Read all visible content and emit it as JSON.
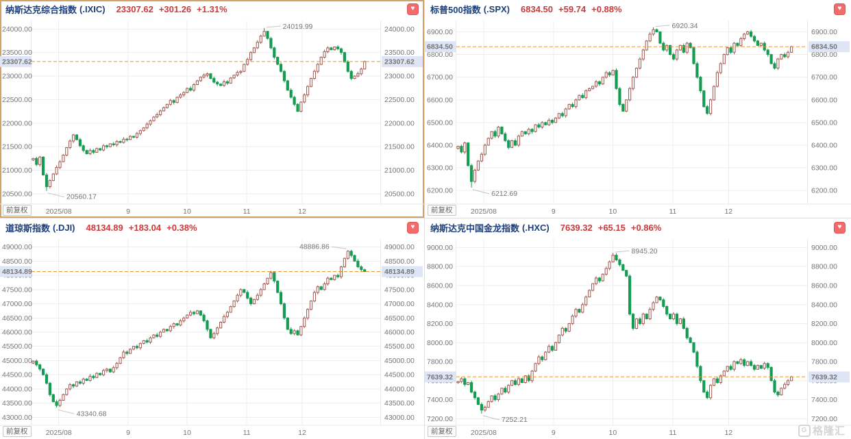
{
  "axis": {
    "adjust_label": "前复权",
    "x_labels": [
      "2025/08",
      "9",
      "10",
      "11",
      "12"
    ],
    "x_positions": [
      0.078,
      0.277,
      0.446,
      0.617,
      0.776
    ]
  },
  "watermark": {
    "text": "格隆汇",
    "icon": "gelonghui-logo"
  },
  "colors": {
    "up": "#a3574e",
    "down": "#169c52",
    "last_price_line": "#e2953d",
    "tag_bg": "#dde5f6",
    "tag_text": "#cb2a33",
    "title_blue": "#1c3f7c",
    "value_red": "#cc3a3a",
    "grid": "#ededed",
    "axis_text": "#757575",
    "annotation_text": "#9a9a9a",
    "active_border": "#d2a268",
    "heart_bg": "#f36b6b"
  },
  "chart_data": [
    {
      "type": "candlestick",
      "name": "纳斯达克综合指数",
      "code": "(.IXIC)",
      "price": "23307.62",
      "change": "+301.26",
      "change_pct": "+1.31%",
      "high_label": "24019.99",
      "low_label": "20560.17",
      "ticks": [
        24000,
        23500,
        23000,
        22500,
        22000,
        21500,
        21000,
        20500
      ],
      "ymin": 20280,
      "ymax": 24180,
      "closes": [
        21250,
        21120,
        21280,
        20900,
        20650,
        20780,
        20920,
        21060,
        21180,
        21320,
        21480,
        21620,
        21750,
        21650,
        21520,
        21420,
        21350,
        21420,
        21380,
        21460,
        21430,
        21520,
        21500,
        21560,
        21540,
        21610,
        21590,
        21660,
        21650,
        21720,
        21700,
        21780,
        21840,
        21900,
        21980,
        22050,
        22130,
        22180,
        22260,
        22330,
        22400,
        22480,
        22440,
        22550,
        22600,
        22650,
        22740,
        22700,
        22820,
        22900,
        22980,
        23020,
        23050,
        22950,
        22870,
        22830,
        22800,
        22880,
        22850,
        22960,
        23020,
        23080,
        23100,
        23250,
        23350,
        23500,
        23600,
        23720,
        23850,
        23950,
        23800,
        23600,
        23400,
        23250,
        23100,
        22900,
        22700,
        22550,
        22400,
        22250,
        22450,
        22600,
        22780,
        22950,
        23100,
        23250,
        23400,
        23520,
        23600,
        23560,
        23620,
        23580,
        23500,
        23300,
        23100,
        22950,
        23000,
        23050,
        23150,
        23307.62
      ]
    },
    {
      "type": "candlestick",
      "name": "标普500指数",
      "code": "(.SPX)",
      "price": "6834.50",
      "change": "+59.74",
      "change_pct": "+0.88%",
      "high_label": "6920.34",
      "low_label": "6212.69",
      "ticks": [
        6900,
        6800,
        6700,
        6600,
        6500,
        6400,
        6300,
        6200
      ],
      "ymin": 6140,
      "ymax": 6950,
      "closes": [
        6395,
        6370,
        6410,
        6310,
        6240,
        6290,
        6330,
        6360,
        6400,
        6430,
        6460,
        6440,
        6480,
        6450,
        6420,
        6390,
        6420,
        6400,
        6440,
        6460,
        6450,
        6470,
        6460,
        6490,
        6480,
        6500,
        6490,
        6510,
        6500,
        6520,
        6540,
        6530,
        6560,
        6580,
        6570,
        6600,
        6620,
        6610,
        6640,
        6650,
        6660,
        6680,
        6670,
        6700,
        6720,
        6710,
        6730,
        6650,
        6580,
        6550,
        6600,
        6650,
        6700,
        6740,
        6780,
        6820,
        6860,
        6890,
        6910,
        6900,
        6850,
        6820,
        6840,
        6800,
        6780,
        6820,
        6840,
        6810,
        6850,
        6830,
        6760,
        6700,
        6640,
        6570,
        6540,
        6600,
        6660,
        6720,
        6760,
        6800,
        6830,
        6810,
        6850,
        6840,
        6870,
        6890,
        6900,
        6880,
        6860,
        6840,
        6850,
        6820,
        6800,
        6760,
        6740,
        6780,
        6800,
        6790,
        6810,
        6834.5
      ]
    },
    {
      "type": "candlestick",
      "name": "道琼斯指数",
      "code": "(.DJI)",
      "price": "48134.89",
      "change": "+183.04",
      "change_pct": "+0.38%",
      "high_label": "48886.86",
      "low_label": "43340.68",
      "ticks": [
        49000,
        48500,
        48000,
        47500,
        47000,
        46500,
        46000,
        45500,
        45000,
        44500,
        44000,
        43500,
        43000
      ],
      "ymin": 42720,
      "ymax": 49280,
      "closes": [
        44980,
        44850,
        44700,
        44500,
        44200,
        43800,
        43550,
        43420,
        43600,
        43800,
        44000,
        44150,
        44100,
        44250,
        44200,
        44350,
        44300,
        44450,
        44400,
        44550,
        44500,
        44650,
        44700,
        44600,
        44750,
        44900,
        45100,
        45300,
        45250,
        45400,
        45500,
        45450,
        45600,
        45700,
        45650,
        45800,
        45900,
        45850,
        46000,
        46100,
        46050,
        46200,
        46300,
        46250,
        46400,
        46500,
        46600,
        46700,
        46650,
        46750,
        46600,
        46400,
        46100,
        45800,
        45950,
        46150,
        46350,
        46550,
        46700,
        46900,
        47100,
        47300,
        47500,
        47400,
        47200,
        47000,
        47150,
        47300,
        47500,
        47700,
        47900,
        48100,
        47800,
        47400,
        47000,
        46500,
        46100,
        45950,
        46050,
        45900,
        46200,
        46500,
        46800,
        47100,
        47400,
        47600,
        47500,
        47700,
        47900,
        47850,
        48000,
        47950,
        48300,
        48600,
        48850,
        48700,
        48500,
        48300,
        48200,
        48134.89
      ]
    },
    {
      "type": "candlestick",
      "name": "纳斯达克中国金龙指数",
      "code": "(.HXC)",
      "price": "7639.32",
      "change": "+65.15",
      "change_pct": "+0.86%",
      "high_label": "8945.20",
      "low_label": "7252.21",
      "ticks": [
        9000,
        8800,
        8600,
        8400,
        8200,
        8000,
        7800,
        7600,
        7400,
        7200
      ],
      "ymin": 7130,
      "ymax": 9090,
      "closes": [
        7590,
        7620,
        7560,
        7580,
        7480,
        7420,
        7350,
        7290,
        7320,
        7380,
        7440,
        7400,
        7460,
        7520,
        7480,
        7550,
        7600,
        7560,
        7620,
        7580,
        7650,
        7600,
        7700,
        7780,
        7850,
        7820,
        7900,
        7960,
        7920,
        8000,
        8080,
        8150,
        8120,
        8200,
        8280,
        8350,
        8320,
        8400,
        8480,
        8550,
        8620,
        8680,
        8650,
        8720,
        8780,
        8850,
        8920,
        8870,
        8820,
        8760,
        8700,
        8300,
        8150,
        8250,
        8200,
        8300,
        8250,
        8350,
        8420,
        8480,
        8450,
        8380,
        8300,
        8250,
        8300,
        8200,
        8250,
        8150,
        8050,
        8000,
        7900,
        7750,
        7600,
        7480,
        7420,
        7550,
        7620,
        7580,
        7650,
        7700,
        7750,
        7720,
        7800,
        7780,
        7820,
        7760,
        7800,
        7760,
        7720,
        7760,
        7730,
        7780,
        7740,
        7600,
        7480,
        7450,
        7520,
        7560,
        7600,
        7639.32
      ]
    }
  ]
}
